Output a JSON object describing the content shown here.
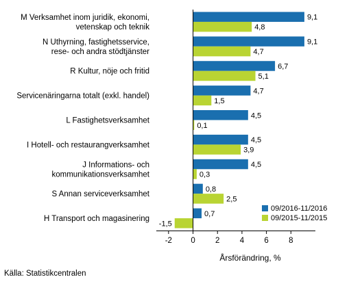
{
  "chart_data": {
    "type": "bar",
    "orientation": "horizontal",
    "categories": [
      [
        "M Verksamhet inom juridik, ekonomi,",
        "vetenskap och teknik"
      ],
      [
        "N Uthyrning, fastighetsservice,",
        "rese- och andra stödtjänster"
      ],
      [
        "R Kultur, nöje och fritid"
      ],
      [
        "Servicenäringarna totalt (exkl. handel)"
      ],
      [
        "L Fastighetsverksamhet"
      ],
      [
        "I Hotell- och restaurangverksamhet"
      ],
      [
        "J Informations- och",
        "kommunikationsverksamhet"
      ],
      [
        "S Annan serviceverksamhet"
      ],
      [
        "H Transport och magasinering"
      ]
    ],
    "series": [
      {
        "name": "09/2016-11/2016",
        "color": "#1a6faf",
        "values": [
          9.1,
          9.1,
          6.7,
          4.7,
          4.5,
          4.5,
          4.5,
          0.8,
          0.7
        ],
        "labels": [
          "9,1",
          "9,1",
          "6,7",
          "4,7",
          "4,5",
          "4,5",
          "4,5",
          "0,8",
          "0,7"
        ]
      },
      {
        "name": "09/2015-11/2015",
        "color": "#b9d433",
        "values": [
          4.8,
          4.7,
          5.1,
          1.5,
          0.1,
          3.9,
          0.3,
          2.5,
          -1.5
        ],
        "labels": [
          "4,8",
          "4,7",
          "5,1",
          "1,5",
          "0,1",
          "3,9",
          "0,3",
          "2,5",
          "-1,5"
        ]
      }
    ],
    "xlabel": "Årsförändring, %",
    "xlim": [
      -3,
      10
    ],
    "ticks": [
      -2,
      0,
      2,
      4,
      6,
      8
    ],
    "tick_labels": [
      "-2",
      "0",
      "2",
      "4",
      "6",
      "8"
    ],
    "legend_position": "bottom-right",
    "grid": false
  },
  "source": "Källa: Statistikcentralen"
}
